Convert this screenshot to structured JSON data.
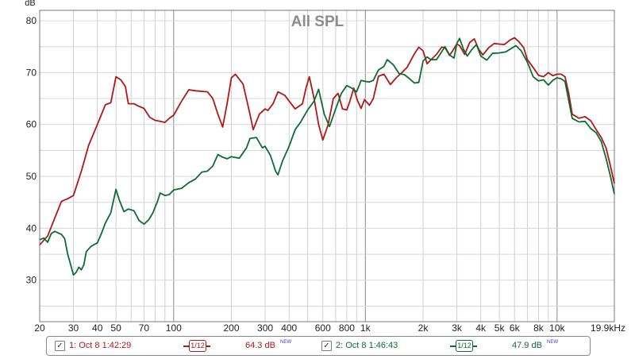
{
  "chart_data": {
    "type": "line",
    "title": "All SPL",
    "ylabel": "dB",
    "xscale": "log",
    "xlim": [
      20,
      19900
    ],
    "ylim": [
      22,
      82
    ],
    "yticks": [
      30,
      40,
      50,
      60,
      70,
      80
    ],
    "xticks": [
      {
        "v": 20,
        "label": "20"
      },
      {
        "v": 30,
        "label": "30"
      },
      {
        "v": 40,
        "label": "40"
      },
      {
        "v": 50,
        "label": "50"
      },
      {
        "v": 70,
        "label": "70"
      },
      {
        "v": 100,
        "label": "100"
      },
      {
        "v": 200,
        "label": "200"
      },
      {
        "v": 300,
        "label": "300"
      },
      {
        "v": 400,
        "label": "400"
      },
      {
        "v": 600,
        "label": "600"
      },
      {
        "v": 800,
        "label": "800"
      },
      {
        "v": 1000,
        "label": "1k"
      },
      {
        "v": 2000,
        "label": "2k"
      },
      {
        "v": 3000,
        "label": "3k"
      },
      {
        "v": 4000,
        "label": "4k"
      },
      {
        "v": 5000,
        "label": "5k"
      },
      {
        "v": 6000,
        "label": "6k"
      },
      {
        "v": 8000,
        "label": "8k"
      },
      {
        "v": 10000,
        "label": "10k"
      },
      {
        "v": 19900,
        "label": "19.9kHz"
      }
    ],
    "grid": true,
    "series": [
      {
        "name": "1: Oct 8 1:42:29",
        "color": "#b01818",
        "points": [
          [
            20,
            36.8
          ],
          [
            22,
            38.5
          ],
          [
            24,
            42
          ],
          [
            26,
            45.2
          ],
          [
            28,
            45.7
          ],
          [
            30,
            46.3
          ],
          [
            33,
            51
          ],
          [
            36,
            56
          ],
          [
            40,
            60
          ],
          [
            44,
            63.8
          ],
          [
            47,
            64.2
          ],
          [
            50,
            69.2
          ],
          [
            53,
            68.6
          ],
          [
            56,
            67.3
          ],
          [
            58,
            64
          ],
          [
            62,
            64
          ],
          [
            65,
            63.6
          ],
          [
            70,
            63.1
          ],
          [
            75,
            61.4
          ],
          [
            80,
            60.8
          ],
          [
            85,
            60.6
          ],
          [
            90,
            60.4
          ],
          [
            95,
            61.2
          ],
          [
            100,
            61.8
          ],
          [
            110,
            64.5
          ],
          [
            120,
            66.7
          ],
          [
            130,
            66.5
          ],
          [
            150,
            66.3
          ],
          [
            160,
            65
          ],
          [
            170,
            62
          ],
          [
            180,
            59.5
          ],
          [
            190,
            64
          ],
          [
            200,
            69
          ],
          [
            210,
            69.7
          ],
          [
            230,
            67.8
          ],
          [
            250,
            62
          ],
          [
            260,
            59
          ],
          [
            280,
            62
          ],
          [
            300,
            63
          ],
          [
            310,
            62.7
          ],
          [
            330,
            64
          ],
          [
            350,
            66.3
          ],
          [
            380,
            65.6
          ],
          [
            410,
            64
          ],
          [
            430,
            63
          ],
          [
            470,
            64
          ],
          [
            490,
            67
          ],
          [
            510,
            69.2
          ],
          [
            540,
            65
          ],
          [
            570,
            60
          ],
          [
            600,
            57
          ],
          [
            640,
            60
          ],
          [
            680,
            65
          ],
          [
            720,
            66
          ],
          [
            760,
            63
          ],
          [
            800,
            62.8
          ],
          [
            830,
            64.5
          ],
          [
            870,
            67
          ],
          [
            910,
            64.6
          ],
          [
            950,
            63.1
          ],
          [
            990,
            64.8
          ],
          [
            1050,
            63.7
          ],
          [
            1100,
            65
          ],
          [
            1170,
            69.3
          ],
          [
            1250,
            69.7
          ],
          [
            1350,
            67.7
          ],
          [
            1450,
            69
          ],
          [
            1550,
            70
          ],
          [
            1650,
            71
          ],
          [
            1800,
            73.6
          ],
          [
            1900,
            74.9
          ],
          [
            2000,
            74.2
          ],
          [
            2100,
            71.7
          ],
          [
            2200,
            72.5
          ],
          [
            2350,
            73.5
          ],
          [
            2500,
            74.9
          ],
          [
            2600,
            74.8
          ],
          [
            2750,
            73.3
          ],
          [
            2850,
            74.2
          ],
          [
            3000,
            75.5
          ],
          [
            3100,
            75.2
          ],
          [
            3300,
            73.5
          ],
          [
            3500,
            75.8
          ],
          [
            3700,
            76.5
          ],
          [
            3900,
            74.5
          ],
          [
            4100,
            73.4
          ],
          [
            4400,
            74.8
          ],
          [
            4700,
            75.6
          ],
          [
            5000,
            75.5
          ],
          [
            5300,
            75.4
          ],
          [
            5700,
            76.3
          ],
          [
            6000,
            76.7
          ],
          [
            6300,
            76
          ],
          [
            6700,
            74.8
          ],
          [
            7000,
            72.5
          ],
          [
            7500,
            71
          ],
          [
            8000,
            69.5
          ],
          [
            8500,
            69.2
          ],
          [
            9000,
            70
          ],
          [
            9500,
            69.4
          ],
          [
            10000,
            69.7
          ],
          [
            10500,
            69.7
          ],
          [
            11000,
            69.2
          ],
          [
            11500,
            66
          ],
          [
            12000,
            62
          ],
          [
            13000,
            61.2
          ],
          [
            14000,
            61.5
          ],
          [
            15000,
            60.7
          ],
          [
            16000,
            59
          ],
          [
            17000,
            57.5
          ],
          [
            18000,
            55.5
          ],
          [
            19000,
            52
          ],
          [
            19900,
            48.6
          ]
        ]
      },
      {
        "name": "2: Oct 8 1:46:43",
        "color": "#0d6b34",
        "points": [
          [
            20,
            37.8
          ],
          [
            21,
            38.1
          ],
          [
            22,
            37.3
          ],
          [
            23,
            39
          ],
          [
            24,
            39.4
          ],
          [
            26,
            38.8
          ],
          [
            27,
            38
          ],
          [
            28,
            35
          ],
          [
            29,
            33
          ],
          [
            30,
            31
          ],
          [
            31,
            31.5
          ],
          [
            32,
            32.5
          ],
          [
            33,
            32
          ],
          [
            34,
            33
          ],
          [
            35,
            35.5
          ],
          [
            37,
            36.5
          ],
          [
            40,
            37.2
          ],
          [
            42,
            39
          ],
          [
            44,
            41
          ],
          [
            47,
            43
          ],
          [
            50,
            47.5
          ],
          [
            52,
            45.5
          ],
          [
            55,
            43.2
          ],
          [
            58,
            43.7
          ],
          [
            62,
            43.4
          ],
          [
            66,
            41.5
          ],
          [
            70,
            40.8
          ],
          [
            74,
            41.6
          ],
          [
            78,
            43
          ],
          [
            82,
            45
          ],
          [
            85,
            46.8
          ],
          [
            90,
            46.3
          ],
          [
            95,
            46.5
          ],
          [
            100,
            47.4
          ],
          [
            110,
            47.7
          ],
          [
            120,
            48.8
          ],
          [
            130,
            49.5
          ],
          [
            140,
            50.8
          ],
          [
            150,
            51
          ],
          [
            160,
            52
          ],
          [
            170,
            54.2
          ],
          [
            180,
            53.7
          ],
          [
            190,
            53.4
          ],
          [
            200,
            53.8
          ],
          [
            220,
            53.5
          ],
          [
            240,
            55.5
          ],
          [
            250,
            57.3
          ],
          [
            270,
            57.5
          ],
          [
            290,
            55.5
          ],
          [
            300,
            55.8
          ],
          [
            320,
            54
          ],
          [
            340,
            51
          ],
          [
            350,
            50.3
          ],
          [
            370,
            53
          ],
          [
            400,
            55.8
          ],
          [
            430,
            59
          ],
          [
            460,
            60.5
          ],
          [
            500,
            62.8
          ],
          [
            540,
            64.5
          ],
          [
            570,
            66.8
          ],
          [
            610,
            62
          ],
          [
            650,
            59.6
          ],
          [
            700,
            63
          ],
          [
            750,
            66
          ],
          [
            800,
            67.5
          ],
          [
            850,
            67
          ],
          [
            900,
            66.3
          ],
          [
            950,
            68.5
          ],
          [
            1000,
            68.3
          ],
          [
            1050,
            68.2
          ],
          [
            1100,
            68.5
          ],
          [
            1170,
            70.5
          ],
          [
            1250,
            71.2
          ],
          [
            1300,
            72.5
          ],
          [
            1400,
            71.5
          ],
          [
            1500,
            69.8
          ],
          [
            1600,
            69.6
          ],
          [
            1700,
            68.8
          ],
          [
            1800,
            68
          ],
          [
            1900,
            68.1
          ],
          [
            2000,
            72.2
          ],
          [
            2100,
            73
          ],
          [
            2200,
            72.5
          ],
          [
            2350,
            72.5
          ],
          [
            2500,
            74
          ],
          [
            2600,
            75
          ],
          [
            2750,
            73.4
          ],
          [
            2900,
            72.8
          ],
          [
            3000,
            75.6
          ],
          [
            3100,
            76.6
          ],
          [
            3250,
            74.5
          ],
          [
            3400,
            73.2
          ],
          [
            3600,
            74.5
          ],
          [
            3800,
            75.4
          ],
          [
            4000,
            73.2
          ],
          [
            4300,
            72.4
          ],
          [
            4600,
            73.7
          ],
          [
            5000,
            73.8
          ],
          [
            5400,
            74
          ],
          [
            5800,
            74.7
          ],
          [
            6100,
            75.2
          ],
          [
            6500,
            74.2
          ],
          [
            7000,
            72
          ],
          [
            7500,
            69.2
          ],
          [
            8000,
            68.4
          ],
          [
            8500,
            68.6
          ],
          [
            9000,
            67.6
          ],
          [
            9500,
            68.5
          ],
          [
            10000,
            69
          ],
          [
            10500,
            68.8
          ],
          [
            11000,
            68.3
          ],
          [
            11500,
            64.6
          ],
          [
            12000,
            61.2
          ],
          [
            13000,
            60.5
          ],
          [
            14000,
            60.6
          ],
          [
            15000,
            59.2
          ],
          [
            16000,
            58.4
          ],
          [
            17000,
            56.7
          ],
          [
            18000,
            53.5
          ],
          [
            19000,
            50
          ],
          [
            19900,
            46.6
          ]
        ]
      }
    ]
  },
  "legend": {
    "items": [
      {
        "check": "✓",
        "label": "1: Oct 8 1:42:29",
        "smoothing": "1/12",
        "value": "64.3 dB",
        "badge": "NEW",
        "color": "#b01818"
      },
      {
        "check": "✓",
        "label": "2: Oct 8 1:46:43",
        "smoothing": "1/12",
        "value": "47.9 dB",
        "badge": "NEW",
        "color": "#0d6b34"
      }
    ]
  }
}
